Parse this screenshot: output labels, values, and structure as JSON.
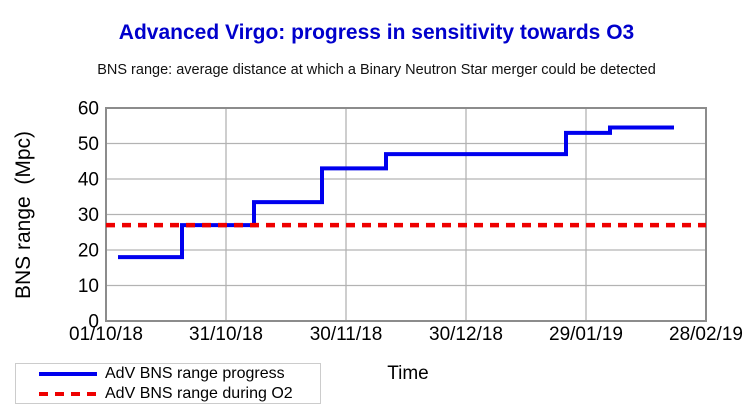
{
  "chart_data": {
    "type": "line",
    "title": "Advanced Virgo: progress in sensitivity towards O3",
    "subtitle": "BNS range: average distance at which a Binary Neutron Star merger could be detected",
    "xlabel": "Time",
    "ylabel": "BNS range (Mpc)",
    "ylabel_display": "BNS range  (Mpc)",
    "ylim": [
      0,
      60
    ],
    "y_ticks": [
      0,
      10,
      20,
      30,
      40,
      50,
      60
    ],
    "x_range_days": [
      0,
      150
    ],
    "x_ticks": [
      {
        "day": 0,
        "label": "01/10/18"
      },
      {
        "day": 30,
        "label": "31/10/18"
      },
      {
        "day": 60,
        "label": "30/11/18"
      },
      {
        "day": 90,
        "label": "30/12/18"
      },
      {
        "day": 120,
        "label": "29/01/19"
      },
      {
        "day": 150,
        "label": "28/02/19"
      }
    ],
    "grid": true,
    "legend_position": "bottom-left",
    "series": [
      {
        "name": "AdV BNS range progress",
        "type": "step",
        "color": "#0000ee",
        "points": [
          {
            "date": "04/10/18",
            "day": 3,
            "value": 18
          },
          {
            "date": "20/10/18",
            "day": 19,
            "value": 27
          },
          {
            "date": "07/11/18",
            "day": 37,
            "value": 33.5
          },
          {
            "date": "24/11/18",
            "day": 54,
            "value": 43
          },
          {
            "date": "10/12/18",
            "day": 70,
            "value": 47
          },
          {
            "date": "24/01/19",
            "day": 115,
            "value": 53
          },
          {
            "date": "04/02/19",
            "day": 126,
            "value": 54.5
          }
        ],
        "end": {
          "date": "20/02/19",
          "day": 142,
          "value": 54.5
        }
      },
      {
        "name": "AdV BNS range during O2",
        "type": "hline-dashed",
        "color": "#ee0000",
        "value": 27,
        "span_days": [
          0,
          150
        ]
      }
    ]
  },
  "colors": {
    "title_text": "#0000cc",
    "progress_line": "#0000ee",
    "o2_line": "#ee0000",
    "gridline": "#b3b3b3",
    "plot_border": "#8c8c8c",
    "tick_text": "#000000"
  }
}
